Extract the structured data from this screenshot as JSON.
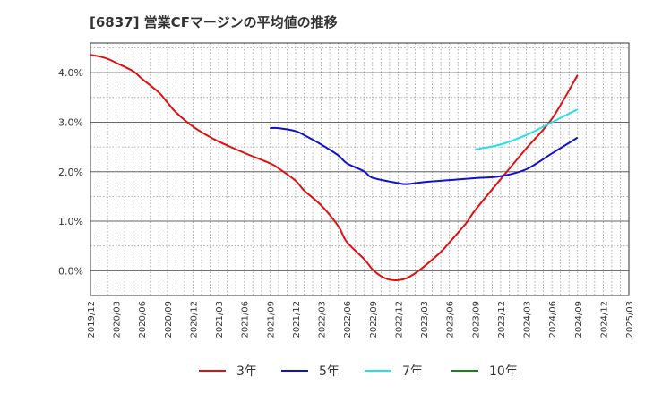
{
  "title": "[6837]  営業CFマージンの平均値の推移",
  "chart_data": {
    "type": "line",
    "title": "[6837]  営業CFマージンの平均値の推移",
    "xlabel": "",
    "ylabel": "",
    "x_ticks": [
      "2019/12",
      "2020/03",
      "2020/06",
      "2020/09",
      "2020/12",
      "2021/03",
      "2021/06",
      "2021/09",
      "2021/12",
      "2022/03",
      "2022/06",
      "2022/09",
      "2022/12",
      "2023/03",
      "2023/06",
      "2023/09",
      "2023/12",
      "2024/03",
      "2024/06",
      "2024/09",
      "2024/12",
      "2025/03"
    ],
    "y_ticks": [
      "0.0%",
      "1.0%",
      "2.0%",
      "3.0%",
      "4.0%"
    ],
    "ylim": [
      -0.5,
      4.6
    ],
    "grid": true,
    "legend_position": "bottom",
    "series": [
      {
        "name": "3年",
        "color": "#dd1111",
        "x": [
          "2019/12",
          "2020/01",
          "2020/02",
          "2020/03",
          "2020/05",
          "2020/06",
          "2020/08",
          "2020/09",
          "2020/10",
          "2020/12",
          "2021/02",
          "2021/03",
          "2021/06",
          "2021/09",
          "2021/10",
          "2021/12",
          "2022/01",
          "2022/03",
          "2022/05",
          "2022/06",
          "2022/08",
          "2022/09",
          "2022/10",
          "2022/11",
          "2022/12",
          "2023/01",
          "2023/02",
          "2023/03",
          "2023/05",
          "2023/06",
          "2023/08",
          "2023/09",
          "2023/12",
          "2024/03",
          "2024/06",
          "2024/09"
        ],
        "values": [
          4.36,
          4.33,
          4.28,
          4.2,
          4.03,
          3.88,
          3.6,
          3.4,
          3.2,
          2.91,
          2.7,
          2.61,
          2.38,
          2.17,
          2.07,
          1.82,
          1.62,
          1.32,
          0.9,
          0.58,
          0.24,
          0.03,
          -0.11,
          -0.18,
          -0.19,
          -0.15,
          -0.05,
          0.08,
          0.38,
          0.57,
          0.97,
          1.22,
          1.85,
          2.47,
          3.07,
          3.95
        ]
      },
      {
        "name": "5年",
        "color": "#1111cc",
        "x": [
          "2021/09",
          "2021/10",
          "2021/12",
          "2022/01",
          "2022/03",
          "2022/05",
          "2022/06",
          "2022/08",
          "2022/09",
          "2022/12",
          "2023/01",
          "2023/03",
          "2023/06",
          "2023/09",
          "2023/12",
          "2024/03",
          "2024/06",
          "2024/09"
        ],
        "values": [
          2.88,
          2.88,
          2.82,
          2.74,
          2.55,
          2.33,
          2.17,
          2.01,
          1.88,
          1.77,
          1.75,
          1.79,
          1.83,
          1.87,
          1.91,
          2.05,
          2.37,
          2.69
        ]
      },
      {
        "name": "7年",
        "color": "#22e0ee",
        "x": [
          "2023/09",
          "2023/12",
          "2024/03",
          "2024/06",
          "2024/09"
        ],
        "values": [
          2.45,
          2.55,
          2.74,
          3.0,
          3.26
        ]
      },
      {
        "name": "10年",
        "color": "#118811",
        "x": [],
        "values": []
      }
    ]
  }
}
